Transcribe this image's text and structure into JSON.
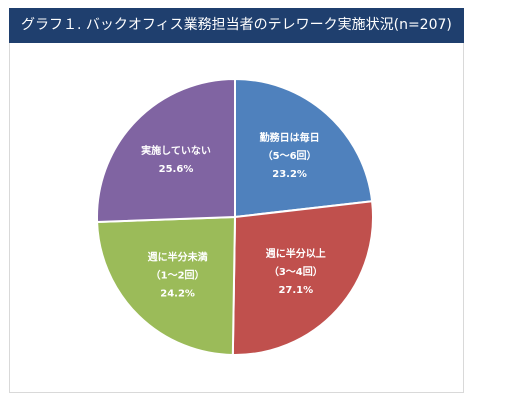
{
  "title": "グラフ１. バックオフィス業務担当者のテレワーク実施状況(n=207)",
  "chart_data": {
    "type": "pie",
    "start_angle_deg": 0,
    "direction": "clockwise",
    "slices": [
      {
        "label": "勤務日は毎日",
        "sublabel": "（5～6回）",
        "value": 23.2,
        "value_label": "23.2%",
        "color": "#4f81bd"
      },
      {
        "label": "週に半分以上",
        "sublabel": "（3～4回）",
        "value": 27.1,
        "value_label": "27.1%",
        "color": "#c0504d"
      },
      {
        "label": "週に半分未満",
        "sublabel": "（1～2回）",
        "value": 24.2,
        "value_label": "24.2%",
        "color": "#9bbb59"
      },
      {
        "label": "実施していない",
        "sublabel": "",
        "value": 25.6,
        "value_label": "25.6%",
        "color": "#8064a2"
      }
    ]
  }
}
